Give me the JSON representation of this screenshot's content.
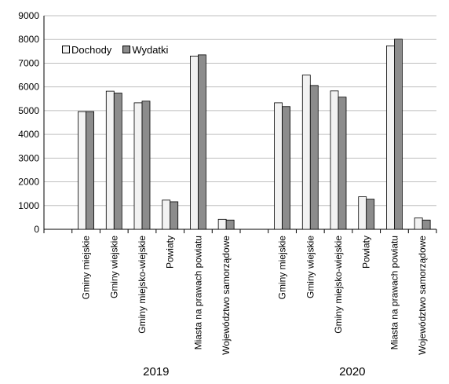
{
  "chart_data": {
    "type": "bar",
    "groups": [
      {
        "label": "2019",
        "categories": [
          "Gminy miejskie",
          "Gminy wiejskie",
          "Gminy miejsko-wiejskie",
          "Powiaty",
          "Miasta na prawach powiatu",
          "Województwo samorządowe"
        ],
        "series": [
          {
            "name": "Dochody",
            "values": [
              4960,
              5820,
              5330,
              1230,
              7300,
              420
            ]
          },
          {
            "name": "Wydatki",
            "values": [
              4960,
              5740,
              5400,
              1160,
              7350,
              390
            ]
          }
        ]
      },
      {
        "label": "2020",
        "categories": [
          "Gminy miejskie",
          "Gminy wiejskie",
          "Gminy miejsko-wiejskie",
          "Powiaty",
          "Miasta na prawach powiatu",
          "Województwo samorządowe"
        ],
        "series": [
          {
            "name": "Dochody",
            "values": [
              5330,
              6500,
              5830,
              1370,
              7730,
              480
            ]
          },
          {
            "name": "Wydatki",
            "values": [
              5170,
              6060,
              5570,
              1270,
              8010,
              390
            ]
          }
        ]
      }
    ],
    "yticks": [
      0,
      1000,
      2000,
      3000,
      4000,
      5000,
      6000,
      7000,
      8000,
      9000
    ],
    "ylim": [
      0,
      9000
    ],
    "grid": true,
    "legend_position": "top-left",
    "colors": {
      "Dochody": "#f2f2f2",
      "Wydatki": "#8c8c8c"
    }
  }
}
